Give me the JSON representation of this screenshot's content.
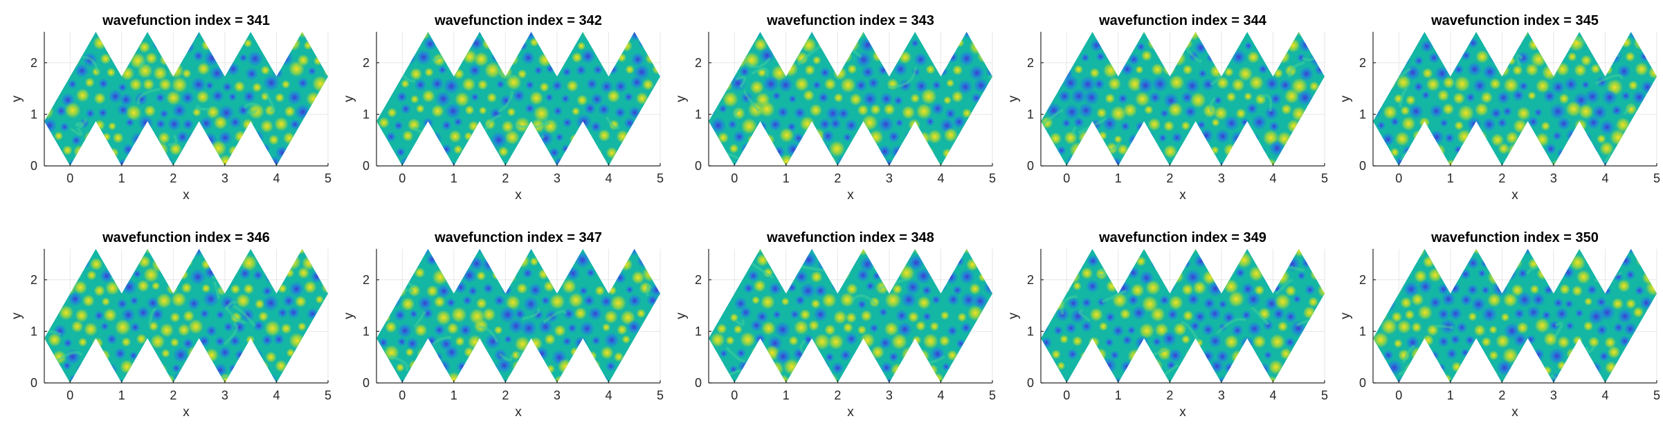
{
  "chart_data": [
    {
      "type": "heatmap",
      "title": "wavefunction index = 341",
      "xlabel": "x",
      "ylabel": "y",
      "xlim": [
        -0.5,
        5
      ],
      "ylim": [
        0,
        2.6
      ],
      "xticks": [
        "0",
        "1",
        "2",
        "3",
        "4",
        "5"
      ],
      "yticks": [
        "0",
        "1",
        "2"
      ],
      "grid": true,
      "colormap": "parula"
    },
    {
      "type": "heatmap",
      "title": "wavefunction index = 342",
      "xlabel": "x",
      "ylabel": "y",
      "xlim": [
        -0.5,
        5
      ],
      "ylim": [
        0,
        2.6
      ],
      "xticks": [
        "0",
        "1",
        "2",
        "3",
        "4",
        "5"
      ],
      "yticks": [
        "0",
        "1",
        "2"
      ],
      "grid": true,
      "colormap": "parula"
    },
    {
      "type": "heatmap",
      "title": "wavefunction index = 343",
      "xlabel": "x",
      "ylabel": "y",
      "xlim": [
        -0.5,
        5
      ],
      "ylim": [
        0,
        2.6
      ],
      "xticks": [
        "0",
        "1",
        "2",
        "3",
        "4",
        "5"
      ],
      "yticks": [
        "0",
        "1",
        "2"
      ],
      "grid": true,
      "colormap": "parula"
    },
    {
      "type": "heatmap",
      "title": "wavefunction index = 344",
      "xlabel": "x",
      "ylabel": "y",
      "xlim": [
        -0.5,
        5
      ],
      "ylim": [
        0,
        2.6
      ],
      "xticks": [
        "0",
        "1",
        "2",
        "3",
        "4",
        "5"
      ],
      "yticks": [
        "0",
        "1",
        "2"
      ],
      "grid": true,
      "colormap": "parula"
    },
    {
      "type": "heatmap",
      "title": "wavefunction index = 345",
      "xlabel": "x",
      "ylabel": "y",
      "xlim": [
        -0.5,
        5
      ],
      "ylim": [
        0,
        2.6
      ],
      "xticks": [
        "0",
        "1",
        "2",
        "3",
        "4",
        "5"
      ],
      "yticks": [
        "0",
        "1",
        "2"
      ],
      "grid": true,
      "colormap": "parula"
    },
    {
      "type": "heatmap",
      "title": "wavefunction index = 346",
      "xlabel": "x",
      "ylabel": "y",
      "xlim": [
        -0.5,
        5
      ],
      "ylim": [
        0,
        2.6
      ],
      "xticks": [
        "0",
        "1",
        "2",
        "3",
        "4",
        "5"
      ],
      "yticks": [
        "0",
        "1",
        "2"
      ],
      "grid": true,
      "colormap": "parula"
    },
    {
      "type": "heatmap",
      "title": "wavefunction index = 347",
      "xlabel": "x",
      "ylabel": "y",
      "xlim": [
        -0.5,
        5
      ],
      "ylim": [
        0,
        2.6
      ],
      "xticks": [
        "0",
        "1",
        "2",
        "3",
        "4",
        "5"
      ],
      "yticks": [
        "0",
        "1",
        "2"
      ],
      "grid": true,
      "colormap": "parula"
    },
    {
      "type": "heatmap",
      "title": "wavefunction index = 348",
      "xlabel": "x",
      "ylabel": "y",
      "xlim": [
        -0.5,
        5
      ],
      "ylim": [
        0,
        2.6
      ],
      "xticks": [
        "0",
        "1",
        "2",
        "3",
        "4",
        "5"
      ],
      "yticks": [
        "0",
        "1",
        "2"
      ],
      "grid": true,
      "colormap": "parula"
    },
    {
      "type": "heatmap",
      "title": "wavefunction index = 349",
      "xlabel": "x",
      "ylabel": "y",
      "xlim": [
        -0.5,
        5
      ],
      "ylim": [
        0,
        2.6
      ],
      "xticks": [
        "0",
        "1",
        "2",
        "3",
        "4",
        "5"
      ],
      "yticks": [
        "0",
        "1",
        "2"
      ],
      "grid": true,
      "colormap": "parula"
    },
    {
      "type": "heatmap",
      "title": "wavefunction index = 350",
      "xlabel": "x",
      "ylabel": "y",
      "xlim": [
        -0.5,
        5
      ],
      "ylim": [
        0,
        2.6
      ],
      "xticks": [
        "0",
        "1",
        "2",
        "3",
        "4",
        "5"
      ],
      "yticks": [
        "0",
        "1",
        "2"
      ],
      "grid": true,
      "colormap": "parula"
    }
  ],
  "domain_shape": {
    "outline": [
      [
        -0.5,
        0.866
      ],
      [
        0,
        0
      ],
      [
        0.5,
        0.866
      ],
      [
        1,
        0
      ],
      [
        1.5,
        0.866
      ],
      [
        2,
        0
      ],
      [
        2.5,
        0.866
      ],
      [
        3,
        0
      ],
      [
        3.5,
        0.866
      ],
      [
        4,
        0
      ],
      [
        5,
        1.732
      ],
      [
        4.5,
        2.598
      ],
      [
        4,
        1.732
      ],
      [
        3.5,
        2.598
      ],
      [
        3,
        1.732
      ],
      [
        2.5,
        2.598
      ],
      [
        2,
        1.732
      ],
      [
        1.5,
        2.598
      ],
      [
        1,
        1.732
      ],
      [
        0.5,
        2.598
      ]
    ]
  },
  "colors": {
    "background_field": "#14b6a4",
    "high_lobe": "#f9e11f",
    "low_lobe": "#3e3bd4",
    "axis": "#262626",
    "grid": "#e6e6e6"
  }
}
